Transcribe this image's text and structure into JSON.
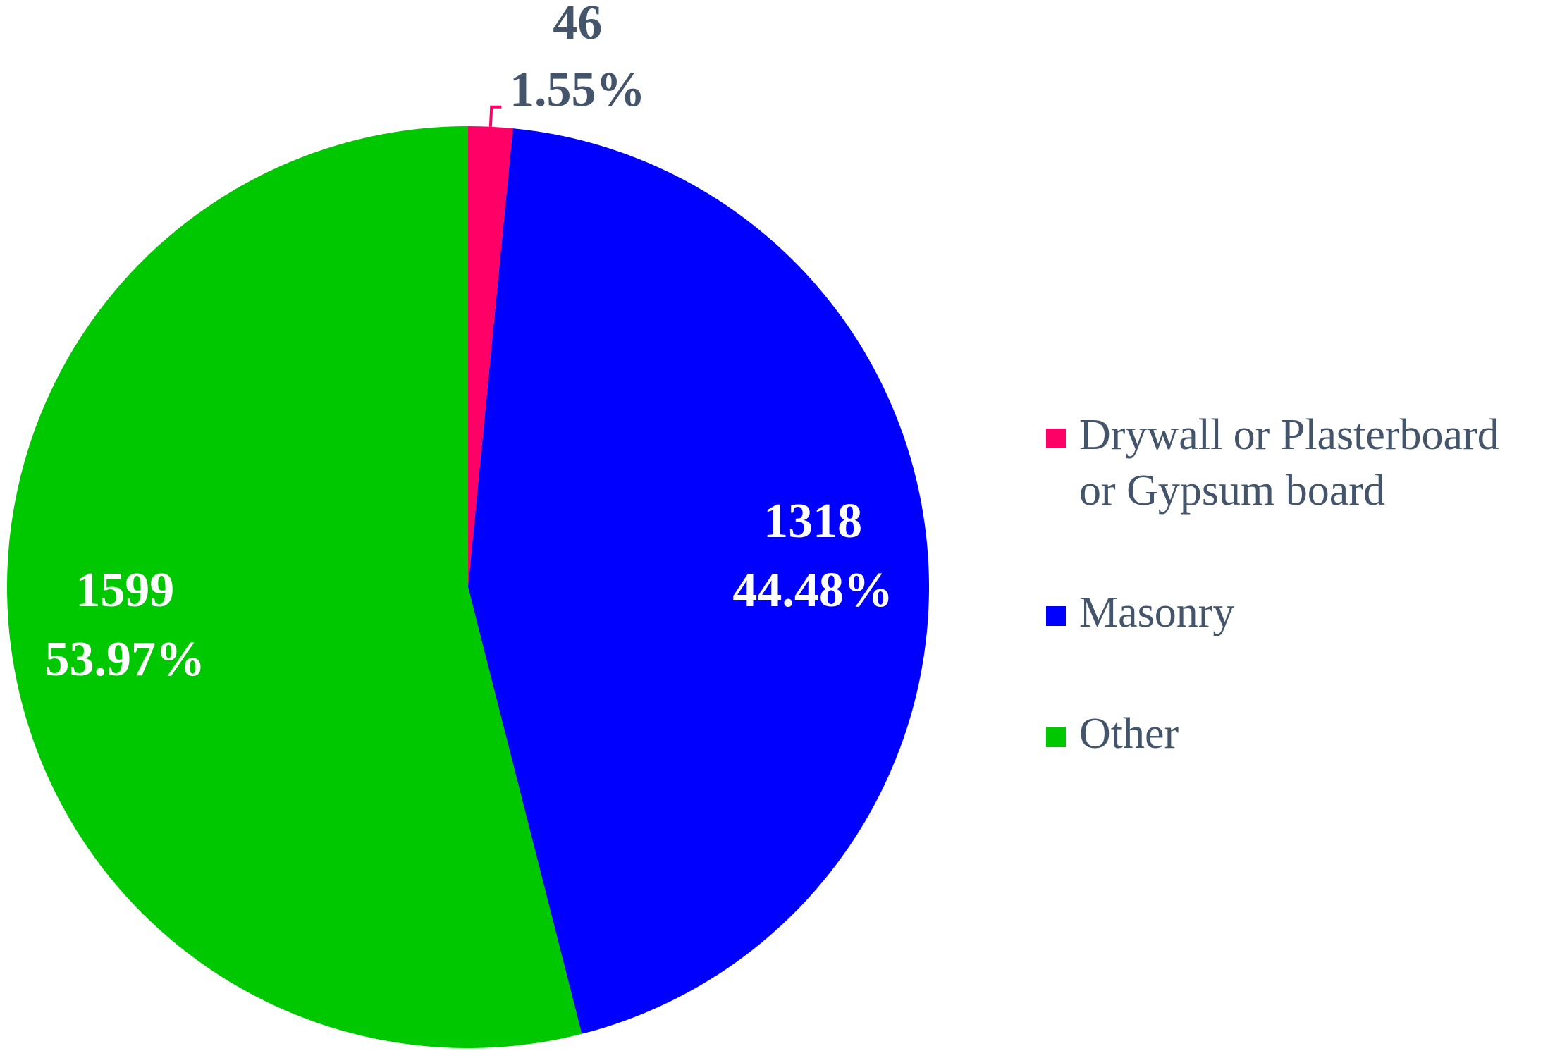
{
  "chart_data": {
    "type": "pie",
    "categories": [
      "Drywall or Plasterboard or Gypsum board",
      "Masonry",
      "Other"
    ],
    "values": [
      46,
      1318,
      1599
    ],
    "percent_labels": [
      "1.55%",
      "44.48%",
      "53.97%"
    ],
    "colors": [
      "#ff0066",
      "#0000ff",
      "#00c800"
    ],
    "legend": "right"
  }
}
